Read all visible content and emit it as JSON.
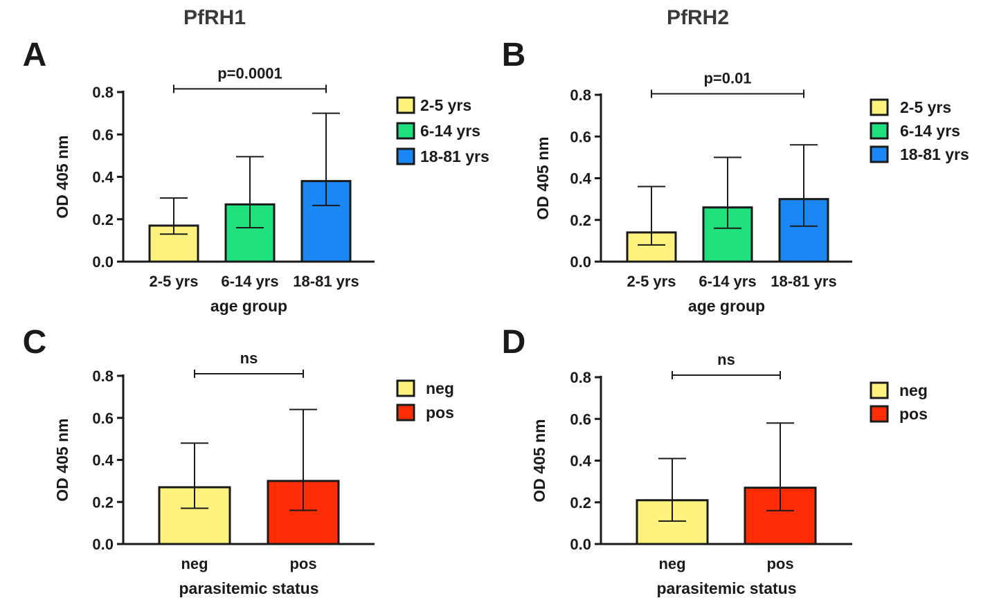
{
  "column_titles": [
    "PfRH1",
    "PfRH2"
  ],
  "colors": {
    "yellow": "#fef37e",
    "green": "#1fe07d",
    "blue": "#1a87f5",
    "red": "#ff2d06"
  },
  "chart_data": [
    {
      "panel": "A",
      "type": "bar",
      "column": "PfRH1",
      "categories": [
        "2-5 yrs",
        "6-14 yrs",
        "18-81 yrs"
      ],
      "values": [
        0.17,
        0.27,
        0.38
      ],
      "err_low": [
        0.13,
        0.16,
        0.265
      ],
      "err_high": [
        0.3,
        0.495,
        0.7
      ],
      "colors": [
        "yellow",
        "green",
        "blue"
      ],
      "xlabel": "age group",
      "ylabel": "OD 405 nm",
      "ylim": [
        0,
        0.8
      ],
      "yticks": [
        "0.0",
        "0.2",
        "0.4",
        "0.6",
        "0.8"
      ],
      "legend": [
        "2-5 yrs",
        "6-14 yrs",
        "18-81 yrs"
      ],
      "annotation": {
        "text": "p=0.0001",
        "from": 0,
        "to": 2,
        "y": 0.815
      }
    },
    {
      "panel": "B",
      "type": "bar",
      "column": "PfRH2",
      "categories": [
        "2-5 yrs",
        "6-14 yrs",
        "18-81 yrs"
      ],
      "values": [
        0.14,
        0.26,
        0.3
      ],
      "err_low": [
        0.08,
        0.16,
        0.17
      ],
      "err_high": [
        0.36,
        0.5,
        0.56
      ],
      "colors": [
        "yellow",
        "green",
        "blue"
      ],
      "xlabel": "age group",
      "ylabel": "OD 405 nm",
      "ylim": [
        0,
        0.8
      ],
      "yticks": [
        "0.0",
        "0.2",
        "0.4",
        "0.6",
        "0.8"
      ],
      "legend": [
        "2-5 yrs",
        "6-14 yrs",
        "18-81 yrs"
      ],
      "annotation": {
        "text": "p=0.01",
        "from": 0,
        "to": 2,
        "y": 0.805
      }
    },
    {
      "panel": "C",
      "type": "bar",
      "column": "PfRH1",
      "categories": [
        "neg",
        "pos"
      ],
      "values": [
        0.27,
        0.3
      ],
      "err_low": [
        0.17,
        0.16
      ],
      "err_high": [
        0.48,
        0.64
      ],
      "colors": [
        "yellow",
        "red"
      ],
      "xlabel": "parasitemic status",
      "ylabel": "OD 405 nm",
      "ylim": [
        0,
        0.8
      ],
      "yticks": [
        "0.0",
        "0.2",
        "0.4",
        "0.6",
        "0.8"
      ],
      "legend": [
        "neg",
        "pos"
      ],
      "annotation": {
        "text": "ns",
        "from": 0,
        "to": 1,
        "y": 0.81
      }
    },
    {
      "panel": "D",
      "type": "bar",
      "column": "PfRH2",
      "categories": [
        "neg",
        "pos"
      ],
      "values": [
        0.21,
        0.27
      ],
      "err_low": [
        0.11,
        0.16
      ],
      "err_high": [
        0.41,
        0.58
      ],
      "colors": [
        "yellow",
        "red"
      ],
      "xlabel": "parasitemic status",
      "ylabel": "OD 405 nm",
      "ylim": [
        0,
        0.8
      ],
      "yticks": [
        "0.0",
        "0.2",
        "0.4",
        "0.6",
        "0.8"
      ],
      "legend": [
        "neg",
        "pos"
      ],
      "annotation": {
        "text": "ns",
        "from": 0,
        "to": 1,
        "y": 0.81
      }
    }
  ]
}
